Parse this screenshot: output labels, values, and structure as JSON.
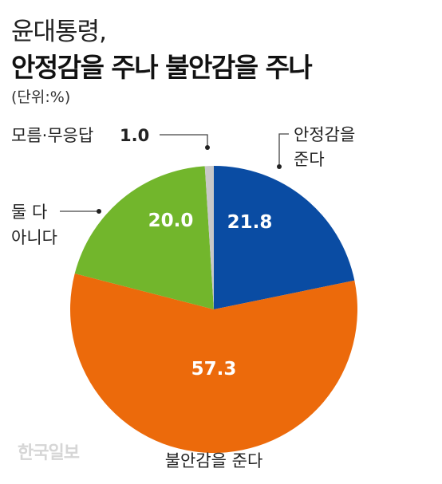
{
  "title_line1": "윤대통령,",
  "title_line2": "안정감을 주나 불안감을 주나",
  "unit": "(단위:%)",
  "watermark": "한국일보",
  "colors": {
    "stable": "#0a4ca3",
    "unstable": "#ec6a0b",
    "neither": "#72b62c",
    "unknown": "#c8c8c8"
  },
  "chart_data": {
    "type": "pie",
    "slices": [
      {
        "label_lines": [
          "안정감을",
          "준다"
        ],
        "value": 21.8,
        "value_label": "21.8",
        "color": "#0a4ca3"
      },
      {
        "label_lines": [
          "불안감을 준다"
        ],
        "value": 57.3,
        "value_label": "57.3",
        "color": "#ec6a0b"
      },
      {
        "label_lines": [
          "둘 다",
          "아니다"
        ],
        "value": 20.0,
        "value_label": "20.0",
        "color": "#72b62c"
      },
      {
        "label_lines": [
          "모름·무응답"
        ],
        "value": 1.0,
        "value_label": "1.0",
        "color": "#c8c8c8"
      }
    ]
  }
}
